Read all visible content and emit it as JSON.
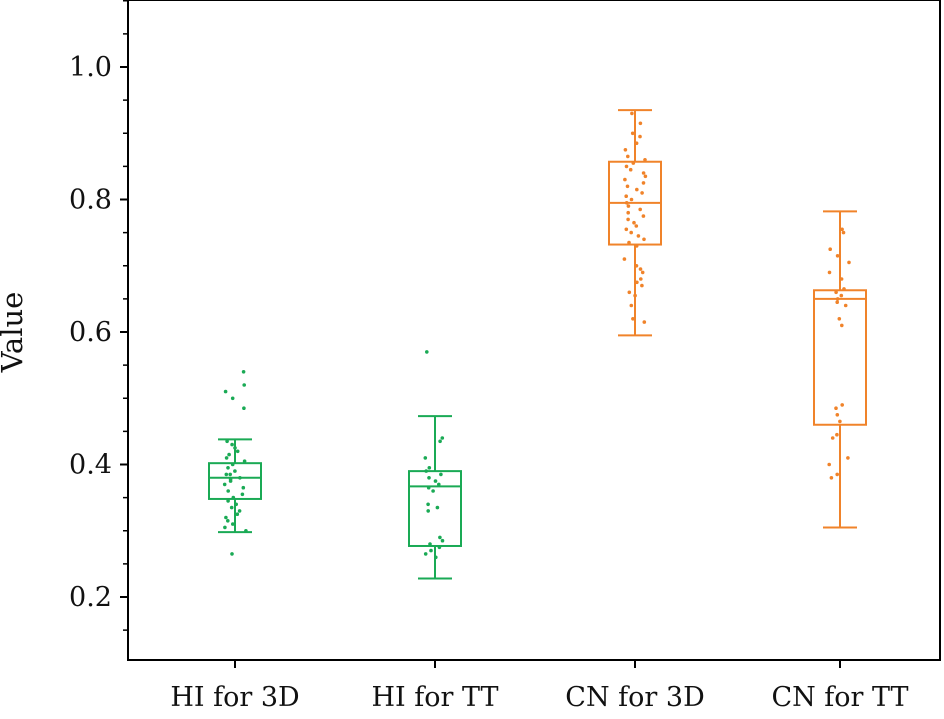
{
  "chart_data": {
    "type": "box",
    "title": "",
    "xlabel": "",
    "ylabel": "Value",
    "ylim": [
      0.1,
      1.1
    ],
    "yticks": [
      0.2,
      0.4,
      0.6,
      0.8,
      1.0
    ],
    "ytick_labels": [
      "0.2",
      "0.4",
      "0.6",
      "0.8",
      "1.0"
    ],
    "grid": false,
    "legend": "none",
    "categories": [
      "HI for 3D",
      "HI for TT",
      "CN for 3D",
      "CN for TT"
    ],
    "colors": [
      "#1aaa55",
      "#1aaa55",
      "#f0832a",
      "#f0832a"
    ],
    "boxes": [
      {
        "category": "HI for 3D",
        "whisker_low": 0.298,
        "q1": 0.348,
        "median": 0.38,
        "q3": 0.402,
        "whisker_high": 0.438,
        "points": [
          0.54,
          0.52,
          0.51,
          0.5,
          0.485,
          0.435,
          0.43,
          0.425,
          0.42,
          0.415,
          0.41,
          0.405,
          0.4,
          0.395,
          0.39,
          0.385,
          0.385,
          0.38,
          0.378,
          0.375,
          0.37,
          0.365,
          0.36,
          0.355,
          0.35,
          0.345,
          0.34,
          0.335,
          0.33,
          0.325,
          0.32,
          0.315,
          0.31,
          0.305,
          0.3,
          0.265
        ]
      },
      {
        "category": "HI for TT",
        "whisker_low": 0.228,
        "q1": 0.277,
        "median": 0.367,
        "q3": 0.39,
        "whisker_high": 0.473,
        "points": [
          0.57,
          0.44,
          0.435,
          0.41,
          0.395,
          0.39,
          0.385,
          0.38,
          0.375,
          0.37,
          0.365,
          0.36,
          0.34,
          0.335,
          0.33,
          0.29,
          0.285,
          0.28,
          0.275,
          0.27,
          0.265,
          0.26
        ]
      },
      {
        "category": "CN for 3D",
        "whisker_low": 0.595,
        "q1": 0.732,
        "median": 0.795,
        "q3": 0.857,
        "whisker_high": 0.935,
        "points": [
          0.93,
          0.915,
          0.9,
          0.895,
          0.885,
          0.875,
          0.865,
          0.86,
          0.855,
          0.85,
          0.845,
          0.84,
          0.835,
          0.83,
          0.825,
          0.82,
          0.815,
          0.81,
          0.805,
          0.8,
          0.795,
          0.79,
          0.785,
          0.78,
          0.775,
          0.77,
          0.765,
          0.76,
          0.755,
          0.75,
          0.745,
          0.74,
          0.735,
          0.73,
          0.71,
          0.7,
          0.695,
          0.69,
          0.68,
          0.675,
          0.67,
          0.66,
          0.655,
          0.64,
          0.62,
          0.615
        ]
      },
      {
        "category": "CN for TT",
        "whisker_low": 0.305,
        "q1": 0.46,
        "median": 0.65,
        "q3": 0.663,
        "whisker_high": 0.782,
        "points": [
          0.755,
          0.75,
          0.725,
          0.715,
          0.705,
          0.69,
          0.68,
          0.665,
          0.66,
          0.655,
          0.65,
          0.645,
          0.64,
          0.62,
          0.61,
          0.49,
          0.485,
          0.475,
          0.465,
          0.445,
          0.44,
          0.41,
          0.4,
          0.385,
          0.38
        ]
      }
    ]
  }
}
